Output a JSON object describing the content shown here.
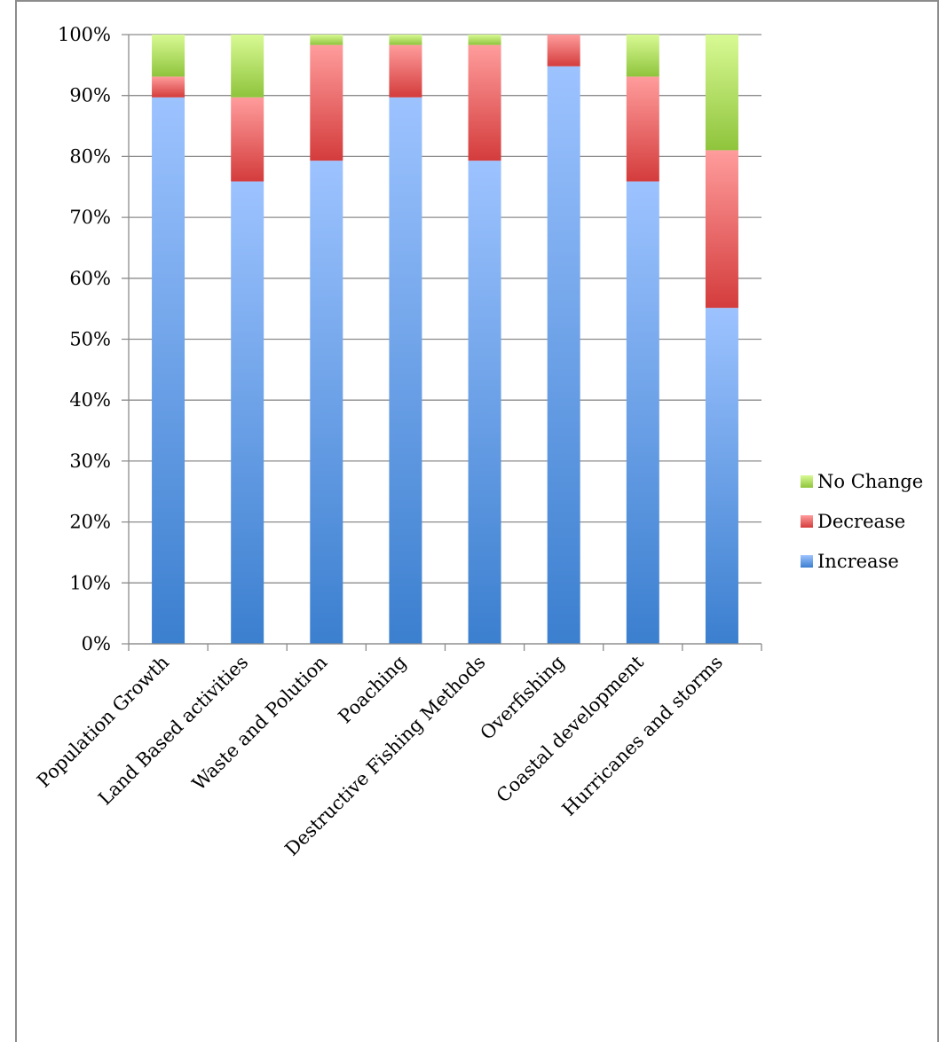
{
  "chart_data": {
    "type": "bar",
    "stacked": true,
    "percent_stacked": true,
    "categories": [
      "Population Growth",
      "Land Based activities",
      "Waste and Polution",
      "Poaching",
      "Destructive Fishing Methods",
      "Overfishing",
      "Coastal development",
      "Hurricanes and storms"
    ],
    "series": [
      {
        "name": "Increase",
        "values": [
          89.7,
          75.9,
          79.3,
          89.7,
          79.3,
          94.8,
          75.9,
          55.2
        ]
      },
      {
        "name": "Decrease",
        "values": [
          3.4,
          13.8,
          19.0,
          8.6,
          19.0,
          5.2,
          17.2,
          25.9
        ]
      },
      {
        "name": "No Change",
        "values": [
          6.9,
          10.3,
          1.7,
          1.7,
          1.7,
          0.0,
          6.9,
          19.0
        ]
      }
    ],
    "colors": {
      "Increase": {
        "light": "#9dc3ff",
        "dark": "#3b7fcf"
      },
      "Decrease": {
        "light": "#ff9c9c",
        "dark": "#d43c3c"
      },
      "No Change": {
        "light": "#d8fa94",
        "dark": "#8fc43c"
      }
    },
    "ylim": [
      0,
      100
    ],
    "yticks": [
      "0%",
      "10%",
      "20%",
      "30%",
      "40%",
      "50%",
      "60%",
      "70%",
      "80%",
      "90%",
      "100%"
    ],
    "grid": true,
    "legend": {
      "placement": "right",
      "entries": [
        "No Change",
        "Decrease",
        "Increase"
      ]
    },
    "title": "",
    "xlabel": "",
    "ylabel": ""
  }
}
